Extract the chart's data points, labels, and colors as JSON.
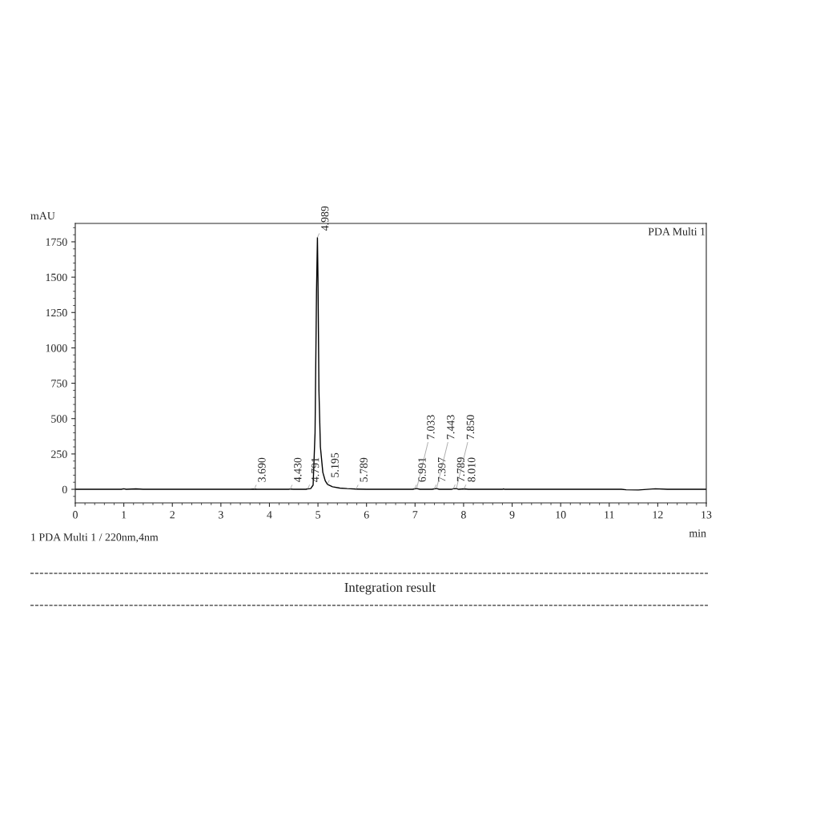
{
  "chart_data": {
    "type": "line",
    "xlabel": "min",
    "ylabel": "mAU",
    "x": [
      0,
      0.95,
      1.0,
      1.05,
      1.25,
      1.4,
      3.6,
      3.69,
      3.75,
      4.4,
      4.43,
      4.5,
      4.75,
      4.79,
      4.85,
      4.9,
      4.94,
      4.97,
      4.989,
      5.0,
      5.02,
      5.05,
      5.1,
      5.15,
      5.195,
      5.3,
      5.45,
      5.6,
      5.789,
      6.0,
      6.95,
      6.991,
      7.033,
      7.1,
      7.35,
      7.397,
      7.443,
      7.5,
      7.75,
      7.789,
      7.85,
      7.9,
      8.01,
      8.1,
      8.8,
      8.82,
      8.85,
      11.25,
      11.35,
      11.6,
      11.95,
      12.2,
      13
    ],
    "series": [
      {
        "color": "#000000",
        "values": [
          0,
          0,
          4,
          0,
          3,
          0,
          0,
          2,
          0,
          0,
          2,
          0,
          0,
          3,
          5,
          30,
          400,
          1400,
          1780,
          1500,
          700,
          300,
          120,
          60,
          35,
          18,
          9,
          5,
          2,
          0,
          0,
          3,
          5,
          0,
          0,
          3,
          5,
          0,
          0,
          4,
          5,
          0,
          3,
          0,
          0,
          3,
          0,
          0,
          -3,
          -5,
          4,
          0,
          0
        ]
      }
    ],
    "xlim": [
      0,
      13
    ],
    "ylim": [
      -96,
      1880
    ],
    "xticks": [
      0,
      1,
      2,
      3,
      4,
      5,
      6,
      7,
      8,
      9,
      10,
      11,
      12,
      13
    ],
    "yticks": [
      0,
      250,
      500,
      750,
      1000,
      1250,
      1500,
      1750
    ],
    "grid": false,
    "legend": false,
    "marker": "none",
    "line_style": "solid",
    "annotations": [
      {
        "text": "3.690",
        "x": 3.69,
        "y": 2
      },
      {
        "text": "4.430",
        "x": 4.43,
        "y": 2
      },
      {
        "text": "4.791",
        "x": 4.79,
        "y": 3
      },
      {
        "text": "4.989",
        "x": 4.989,
        "y": 1780
      },
      {
        "text": "5.195",
        "x": 5.195,
        "y": 35
      },
      {
        "text": "5.789",
        "x": 5.789,
        "y": 2
      },
      {
        "text": "6.991",
        "x": 6.991,
        "y": 3
      },
      {
        "text": "7.033",
        "x": 7.033,
        "y": 5
      },
      {
        "text": "7.397",
        "x": 7.397,
        "y": 3
      },
      {
        "text": "7.443",
        "x": 7.443,
        "y": 5
      },
      {
        "text": "7.789",
        "x": 7.789,
        "y": 4
      },
      {
        "text": "7.850",
        "x": 7.85,
        "y": 5
      },
      {
        "text": "8.010",
        "x": 8.01,
        "y": 3
      },
      "PDA Multi 1",
      "1 PDA Multi 1 / 220nm,4nm",
      "Integration result"
    ]
  }
}
